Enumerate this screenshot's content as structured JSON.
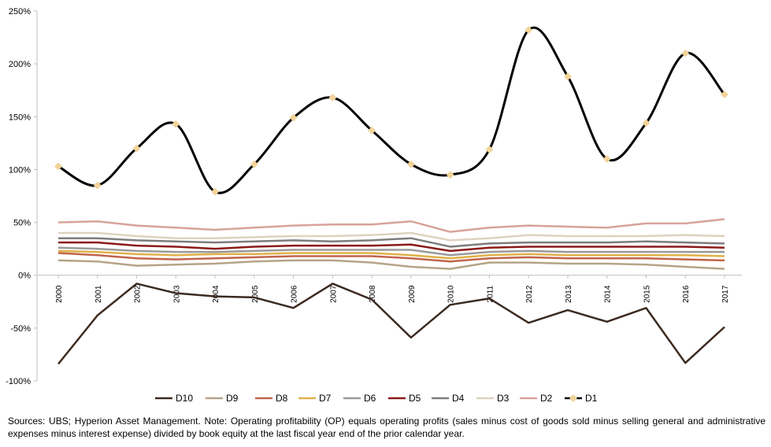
{
  "chart_data": {
    "type": "line",
    "title": "",
    "xlabel": "",
    "ylabel": "",
    "x": [
      "2000",
      "2001",
      "2002",
      "2003",
      "2004",
      "2005",
      "2006",
      "2007",
      "2008",
      "2009",
      "2010",
      "2011",
      "2012",
      "2013",
      "2014",
      "2015",
      "2016",
      "2017"
    ],
    "ylim": [
      -100,
      250
    ],
    "yticks": [
      -100,
      -50,
      0,
      50,
      100,
      150,
      200,
      250
    ],
    "ytick_labels": [
      "-100%",
      "-50%",
      "0%",
      "50%",
      "100%",
      "150%",
      "200%",
      "250%"
    ],
    "grid": false,
    "legend_position": "bottom",
    "series": [
      {
        "name": "D10",
        "color": "#3b2a20",
        "smooth": false,
        "markers": false,
        "values": [
          -84,
          -38,
          -8,
          -17,
          -20,
          -21,
          -31,
          -8,
          -23,
          -59,
          -28,
          -22,
          -45,
          -33,
          -44,
          -31,
          -83,
          -49
        ]
      },
      {
        "name": "D9",
        "color": "#b5a488",
        "smooth": false,
        "markers": false,
        "values": [
          14,
          13,
          9,
          10,
          11,
          13,
          14,
          14,
          12,
          8,
          6,
          12,
          12,
          11,
          11,
          10,
          8,
          6
        ]
      },
      {
        "name": "D8",
        "color": "#c0644a",
        "smooth": false,
        "markers": false,
        "values": [
          21,
          19,
          16,
          15,
          16,
          17,
          18,
          18,
          18,
          16,
          13,
          16,
          17,
          16,
          16,
          16,
          15,
          14
        ]
      },
      {
        "name": "D7",
        "color": "#e0b048",
        "smooth": false,
        "markers": false,
        "values": [
          23,
          22,
          20,
          19,
          20,
          20,
          21,
          21,
          21,
          19,
          16,
          19,
          20,
          19,
          19,
          19,
          19,
          18
        ]
      },
      {
        "name": "D6",
        "color": "#9a9a9a",
        "smooth": false,
        "markers": false,
        "values": [
          26,
          25,
          23,
          22,
          22,
          23,
          24,
          24,
          24,
          24,
          19,
          22,
          23,
          22,
          22,
          22,
          22,
          22
        ]
      },
      {
        "name": "D5",
        "color": "#8b1a1a",
        "smooth": false,
        "markers": false,
        "values": [
          31,
          31,
          28,
          27,
          25,
          27,
          28,
          28,
          28,
          29,
          23,
          26,
          27,
          27,
          27,
          27,
          27,
          26
        ]
      },
      {
        "name": "D4",
        "color": "#7d7d7d",
        "smooth": false,
        "markers": false,
        "values": [
          35,
          35,
          33,
          32,
          31,
          32,
          33,
          32,
          33,
          35,
          27,
          30,
          31,
          31,
          31,
          32,
          31,
          30
        ]
      },
      {
        "name": "D3",
        "color": "#ddd3c0",
        "smooth": false,
        "markers": false,
        "values": [
          40,
          40,
          37,
          35,
          35,
          36,
          37,
          37,
          38,
          40,
          33,
          35,
          38,
          37,
          37,
          37,
          38,
          37
        ]
      },
      {
        "name": "D2",
        "color": "#d7a399",
        "smooth": false,
        "markers": false,
        "values": [
          50,
          51,
          47,
          45,
          43,
          45,
          47,
          48,
          48,
          51,
          41,
          45,
          47,
          46,
          45,
          49,
          49,
          53
        ]
      },
      {
        "name": "D1",
        "color": "#000000",
        "smooth": true,
        "markers": true,
        "marker_color": "#f2d49a",
        "values": [
          103,
          85,
          120,
          143,
          79,
          105,
          149,
          168,
          137,
          105,
          95,
          119,
          232,
          188,
          110,
          144,
          210,
          171
        ]
      }
    ]
  },
  "footnote": "Sources: UBS; Hyperion Asset Management. Note: Operating profitability (OP) equals operating profits (sales minus cost of goods sold minus selling general and administrative expenses minus interest expense) divided by book equity at the last fiscal year end of the prior calendar year."
}
